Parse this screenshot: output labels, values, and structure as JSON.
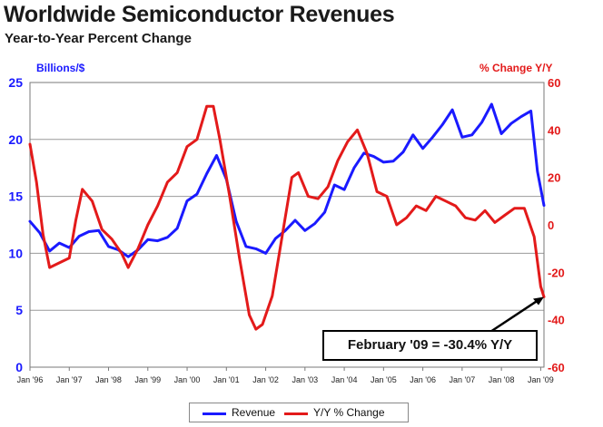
{
  "header": {
    "title": "Worldwide Semiconductor Revenues",
    "subtitle": "Year-to-Year Percent Change"
  },
  "axes": {
    "left_label": "Billions/$",
    "right_label": "% Change Y/Y"
  },
  "legend": {
    "revenue_label": "Revenue",
    "yoy_label": "Y/Y % Change"
  },
  "annotation": {
    "text": "February '09 = -30.4% Y/Y"
  },
  "colors": {
    "revenue": "#1a1aff",
    "yoy": "#e31a1a",
    "grid": "#9a9a9a",
    "axis_left": "#1a1aff",
    "axis_right": "#e31a1a"
  },
  "chart_data": {
    "type": "line",
    "title": "Worldwide Semiconductor Revenues",
    "subtitle": "Year-to-Year Percent Change",
    "x_ticks": [
      "Jan '96",
      "Jan '97",
      "Jan '98",
      "Jan '99",
      "Jan '00",
      "Jan '01",
      "Jan '02",
      "Jan '03",
      "Jan '04",
      "Jan '05",
      "Jan '06",
      "Jan '07",
      "Jan '08",
      "Jan '09"
    ],
    "x_range": [
      "1996-01",
      "2009-02"
    ],
    "y_left": {
      "label": "Billions/$",
      "range": [
        0,
        25
      ],
      "ticks": [
        0,
        5,
        10,
        15,
        20,
        25
      ]
    },
    "y_right": {
      "label": "% Change Y/Y",
      "range": [
        -60,
        60
      ],
      "ticks": [
        -60,
        -40,
        -20,
        0,
        20,
        40,
        60
      ]
    },
    "grid": true,
    "legend_position": "bottom",
    "series": [
      {
        "name": "Revenue",
        "axis": "left",
        "color": "#1a1aff",
        "points": [
          [
            "1996-01",
            12.8
          ],
          [
            "1996-04",
            11.8
          ],
          [
            "1996-07",
            10.2
          ],
          [
            "1996-10",
            10.9
          ],
          [
            "1997-01",
            10.5
          ],
          [
            "1997-04",
            11.5
          ],
          [
            "1997-07",
            11.9
          ],
          [
            "1997-10",
            12.0
          ],
          [
            "1998-01",
            10.6
          ],
          [
            "1998-04",
            10.3
          ],
          [
            "1998-07",
            9.7
          ],
          [
            "1998-10",
            10.3
          ],
          [
            "1999-01",
            11.2
          ],
          [
            "1999-04",
            11.1
          ],
          [
            "1999-07",
            11.4
          ],
          [
            "1999-10",
            12.2
          ],
          [
            "2000-01",
            14.6
          ],
          [
            "2000-04",
            15.2
          ],
          [
            "2000-07",
            17.0
          ],
          [
            "2000-10",
            18.6
          ],
          [
            "2001-01",
            16.5
          ],
          [
            "2001-04",
            12.8
          ],
          [
            "2001-07",
            10.6
          ],
          [
            "2001-10",
            10.4
          ],
          [
            "2002-01",
            10.0
          ],
          [
            "2002-04",
            11.3
          ],
          [
            "2002-07",
            12.0
          ],
          [
            "2002-10",
            12.9
          ],
          [
            "2003-01",
            12.0
          ],
          [
            "2003-04",
            12.6
          ],
          [
            "2003-07",
            13.6
          ],
          [
            "2003-10",
            16.0
          ],
          [
            "2004-01",
            15.6
          ],
          [
            "2004-04",
            17.5
          ],
          [
            "2004-07",
            18.8
          ],
          [
            "2004-10",
            18.5
          ],
          [
            "2005-01",
            18.0
          ],
          [
            "2005-04",
            18.1
          ],
          [
            "2005-07",
            18.9
          ],
          [
            "2005-10",
            20.4
          ],
          [
            "2006-01",
            19.2
          ],
          [
            "2006-04",
            20.2
          ],
          [
            "2006-07",
            21.3
          ],
          [
            "2006-10",
            22.6
          ],
          [
            "2007-01",
            20.2
          ],
          [
            "2007-04",
            20.4
          ],
          [
            "2007-07",
            21.5
          ],
          [
            "2007-10",
            23.1
          ],
          [
            "2008-01",
            20.5
          ],
          [
            "2008-04",
            21.4
          ],
          [
            "2008-07",
            22.0
          ],
          [
            "2008-10",
            22.5
          ],
          [
            "2008-12",
            17.2
          ],
          [
            "2009-02",
            14.2
          ]
        ]
      },
      {
        "name": "Y/Y % Change",
        "axis": "right",
        "color": "#e31a1a",
        "points": [
          [
            "1996-01",
            34
          ],
          [
            "1996-03",
            18
          ],
          [
            "1996-05",
            -4
          ],
          [
            "1996-07",
            -18
          ],
          [
            "1996-10",
            -16
          ],
          [
            "1997-01",
            -14
          ],
          [
            "1997-03",
            2
          ],
          [
            "1997-05",
            15
          ],
          [
            "1997-08",
            10
          ],
          [
            "1997-11",
            -2
          ],
          [
            "1998-02",
            -6
          ],
          [
            "1998-05",
            -12
          ],
          [
            "1998-07",
            -18
          ],
          [
            "1998-10",
            -10
          ],
          [
            "1999-01",
            0
          ],
          [
            "1999-04",
            8
          ],
          [
            "1999-07",
            18
          ],
          [
            "1999-10",
            22
          ],
          [
            "2000-01",
            33
          ],
          [
            "2000-04",
            36
          ],
          [
            "2000-07",
            50
          ],
          [
            "2000-09",
            50
          ],
          [
            "2000-11",
            36
          ],
          [
            "2001-02",
            12
          ],
          [
            "2001-05",
            -14
          ],
          [
            "2001-08",
            -38
          ],
          [
            "2001-10",
            -44
          ],
          [
            "2001-12",
            -42
          ],
          [
            "2002-03",
            -30
          ],
          [
            "2002-06",
            -5
          ],
          [
            "2002-09",
            20
          ],
          [
            "2002-11",
            22
          ],
          [
            "2003-02",
            12
          ],
          [
            "2003-05",
            11
          ],
          [
            "2003-08",
            16
          ],
          [
            "2003-11",
            27
          ],
          [
            "2004-02",
            35
          ],
          [
            "2004-05",
            40
          ],
          [
            "2004-08",
            30
          ],
          [
            "2004-11",
            14
          ],
          [
            "2005-02",
            12
          ],
          [
            "2005-05",
            0
          ],
          [
            "2005-08",
            3
          ],
          [
            "2005-11",
            8
          ],
          [
            "2006-02",
            6
          ],
          [
            "2006-05",
            12
          ],
          [
            "2006-08",
            10
          ],
          [
            "2006-11",
            8
          ],
          [
            "2007-02",
            3
          ],
          [
            "2007-05",
            2
          ],
          [
            "2007-08",
            6
          ],
          [
            "2007-11",
            1
          ],
          [
            "2008-02",
            4
          ],
          [
            "2008-05",
            7
          ],
          [
            "2008-08",
            7
          ],
          [
            "2008-11",
            -5
          ],
          [
            "2009-01",
            -26
          ],
          [
            "2009-02",
            -30.4
          ]
        ]
      }
    ],
    "annotation": {
      "text": "February '09 = -30.4% Y/Y",
      "x": "2009-02",
      "y_right": -30.4
    }
  }
}
